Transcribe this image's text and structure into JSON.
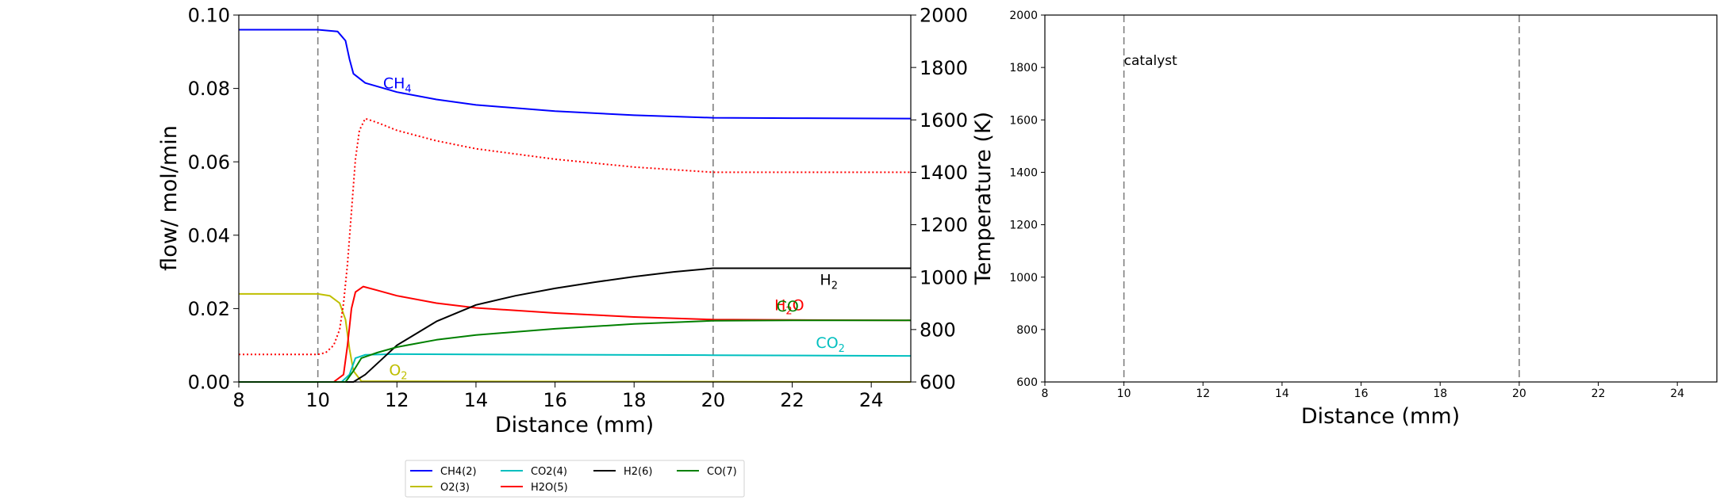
{
  "chart_data": [
    {
      "type": "line",
      "title": "",
      "xlabel": "Distance (mm)",
      "ylabel": "flow/ mol/min",
      "y2label": "Temperature (K)",
      "xlim": [
        8,
        25
      ],
      "ylim": [
        0,
        0.1
      ],
      "y2lim": [
        600,
        2000
      ],
      "xticks": [
        "8",
        "10",
        "12",
        "14",
        "16",
        "18",
        "20",
        "22",
        "24"
      ],
      "yticks": [
        "0.00",
        "0.02",
        "0.04",
        "0.06",
        "0.08",
        "0.10"
      ],
      "y2ticks": [
        "600",
        "800",
        "1000",
        "1200",
        "1400",
        "1600",
        "1800",
        "2000"
      ],
      "catalyst_lines": [
        10,
        20
      ],
      "series": [
        {
          "name": "CH4(2)",
          "color": "#0000ff",
          "points": [
            [
              8,
              0.096
            ],
            [
              10,
              0.096
            ],
            [
              10.5,
              0.0955
            ],
            [
              10.7,
              0.093
            ],
            [
              10.8,
              0.088
            ],
            [
              10.9,
              0.084
            ],
            [
              11.2,
              0.0815
            ],
            [
              12,
              0.079
            ],
            [
              13,
              0.077
            ],
            [
              14,
              0.0755
            ],
            [
              16,
              0.0738
            ],
            [
              18,
              0.0727
            ],
            [
              20,
              0.072
            ],
            [
              22,
              0.0719
            ],
            [
              25,
              0.0718
            ]
          ]
        },
        {
          "name": "O2(3)",
          "color": "#bfbf00",
          "points": [
            [
              8,
              0.024
            ],
            [
              10,
              0.024
            ],
            [
              10.3,
              0.0235
            ],
            [
              10.55,
              0.0215
            ],
            [
              10.7,
              0.017
            ],
            [
              10.8,
              0.009
            ],
            [
              10.9,
              0.003
            ],
            [
              11.1,
              0.0002
            ],
            [
              25,
              0
            ]
          ]
        },
        {
          "name": "CO2(4)",
          "color": "#00bfbf",
          "points": [
            [
              8,
              0
            ],
            [
              10.6,
              0
            ],
            [
              10.8,
              0.002
            ],
            [
              10.95,
              0.0065
            ],
            [
              11.2,
              0.0074
            ],
            [
              12,
              0.0076
            ],
            [
              14,
              0.0075
            ],
            [
              20,
              0.0073
            ],
            [
              25,
              0.0071
            ]
          ]
        },
        {
          "name": "H2O(5)",
          "color": "#ff0000",
          "points": [
            [
              8,
              0
            ],
            [
              10.4,
              0
            ],
            [
              10.65,
              0.002
            ],
            [
              10.75,
              0.01
            ],
            [
              10.85,
              0.02
            ],
            [
              10.95,
              0.0245
            ],
            [
              11.15,
              0.026
            ],
            [
              11.5,
              0.025
            ],
            [
              12,
              0.0235
            ],
            [
              13,
              0.0215
            ],
            [
              14,
              0.0202
            ],
            [
              16,
              0.0188
            ],
            [
              18,
              0.0177
            ],
            [
              20,
              0.017
            ],
            [
              22,
              0.0169
            ],
            [
              25,
              0.0168
            ]
          ]
        },
        {
          "name": "H2(6)",
          "color": "#000000",
          "points": [
            [
              8,
              0
            ],
            [
              10.9,
              0
            ],
            [
              11.2,
              0.002
            ],
            [
              11.6,
              0.006
            ],
            [
              12,
              0.01
            ],
            [
              13,
              0.0165
            ],
            [
              14,
              0.021
            ],
            [
              15,
              0.0235
            ],
            [
              16,
              0.0255
            ],
            [
              17,
              0.0272
            ],
            [
              18,
              0.0287
            ],
            [
              19,
              0.03
            ],
            [
              20,
              0.031
            ],
            [
              22,
              0.031
            ],
            [
              25,
              0.031
            ]
          ]
        },
        {
          "name": "CO(7)",
          "color": "#008000",
          "points": [
            [
              8,
              0
            ],
            [
              10.7,
              0
            ],
            [
              10.9,
              0.003
            ],
            [
              11.1,
              0.0065
            ],
            [
              11.5,
              0.008
            ],
            [
              12,
              0.0095
            ],
            [
              13,
              0.0115
            ],
            [
              14,
              0.0128
            ],
            [
              16,
              0.0145
            ],
            [
              18,
              0.0158
            ],
            [
              20,
              0.0167
            ],
            [
              22,
              0.0168
            ],
            [
              25,
              0.0168
            ]
          ]
        },
        {
          "name": "",
          "axis": "y2",
          "color": "#ff0000",
          "style": "dotted",
          "points": [
            [
              8,
              705
            ],
            [
              10,
              705
            ],
            [
              10.2,
              712
            ],
            [
              10.4,
              740
            ],
            [
              10.55,
              800
            ],
            [
              10.65,
              900
            ],
            [
              10.75,
              1050
            ],
            [
              10.85,
              1250
            ],
            [
              10.95,
              1450
            ],
            [
              11.05,
              1560
            ],
            [
              11.2,
              1605
            ],
            [
              11.5,
              1590
            ],
            [
              12,
              1560
            ],
            [
              13,
              1520
            ],
            [
              14,
              1490
            ],
            [
              16,
              1450
            ],
            [
              18,
              1420
            ],
            [
              20,
              1400
            ],
            [
              22,
              1400
            ],
            [
              25,
              1400
            ]
          ]
        }
      ],
      "annotations": [
        {
          "text": "CH",
          "sub": "4",
          "x": 11.65,
          "y": 0.08,
          "color": "#0000ff"
        },
        {
          "text": "H",
          "sub": "2",
          "x": 22.7,
          "y": 0.0265,
          "color": "#000000"
        },
        {
          "text": "H",
          "sub": "2",
          "tail": "O",
          "x": 21.55,
          "y": 0.0195,
          "color": "#ff0000"
        },
        {
          "text": "CO",
          "x": 21.6,
          "y": 0.0192,
          "color": "#008000"
        },
        {
          "text": "CO",
          "sub": "2",
          "x": 22.6,
          "y": 0.0093,
          "color": "#00bfbf"
        },
        {
          "text": "O",
          "sub": "2",
          "x": 11.8,
          "y": 0.0018,
          "color": "#bfbf00"
        }
      ],
      "legend": {
        "placement": "bottom-center",
        "entries": [
          "CH4(2)",
          "O2(3)",
          "CO2(4)",
          "H2O(5)",
          "H2(6)",
          "CO(7)"
        ]
      }
    },
    {
      "type": "line",
      "title": "",
      "xlabel": "Distance (mm)",
      "ylabel": "",
      "xlim": [
        8,
        25
      ],
      "ylim": [
        600,
        2000
      ],
      "xticks": [
        "8",
        "10",
        "12",
        "14",
        "16",
        "18",
        "20",
        "22",
        "24"
      ],
      "yticks": [
        "600",
        "800",
        "1000",
        "1200",
        "1400",
        "1600",
        "1800",
        "2000"
      ],
      "catalyst_lines": [
        10,
        20
      ],
      "series": [],
      "annotations": [
        {
          "text": "catalyst",
          "x": 10,
          "y": 1810,
          "color": "#000000"
        }
      ]
    }
  ]
}
